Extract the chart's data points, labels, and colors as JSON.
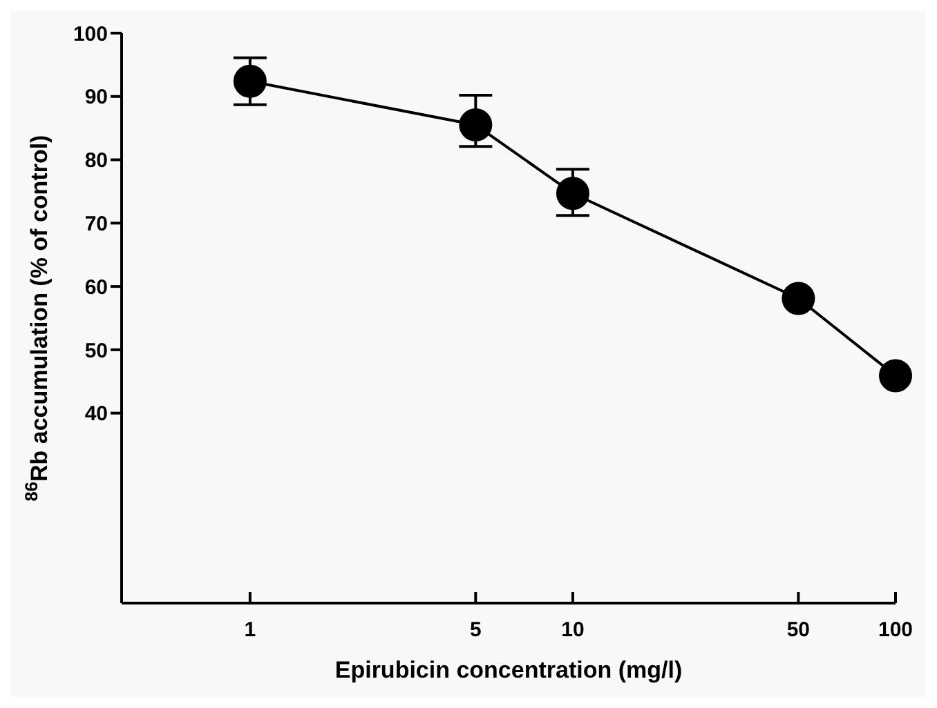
{
  "chart_data": {
    "type": "line",
    "xlabel": "Epirubicin concentration (mg/l)",
    "ylabel": "$^{86}$Rb accumulation (% of control)",
    "x": [
      1,
      5,
      10,
      50,
      100
    ],
    "series": [
      {
        "color": "#000000",
        "values": [
          92.4,
          85.5,
          74.7,
          58.1,
          45.9
        ],
        "errors": [
          [
            88.7,
            96.1
          ],
          [
            82.1,
            90.2
          ],
          [
            71.2,
            78.5
          ],
          null,
          null
        ]
      }
    ],
    "log": "x",
    "xlim": [
      0.4,
      100
    ],
    "xticks": [
      1,
      5,
      10,
      50,
      100
    ],
    "ylim": [
      10,
      100
    ],
    "yticks": [
      40,
      50,
      60,
      70,
      80,
      90,
      100
    ],
    "marker": "circle",
    "line_style": "solid"
  }
}
